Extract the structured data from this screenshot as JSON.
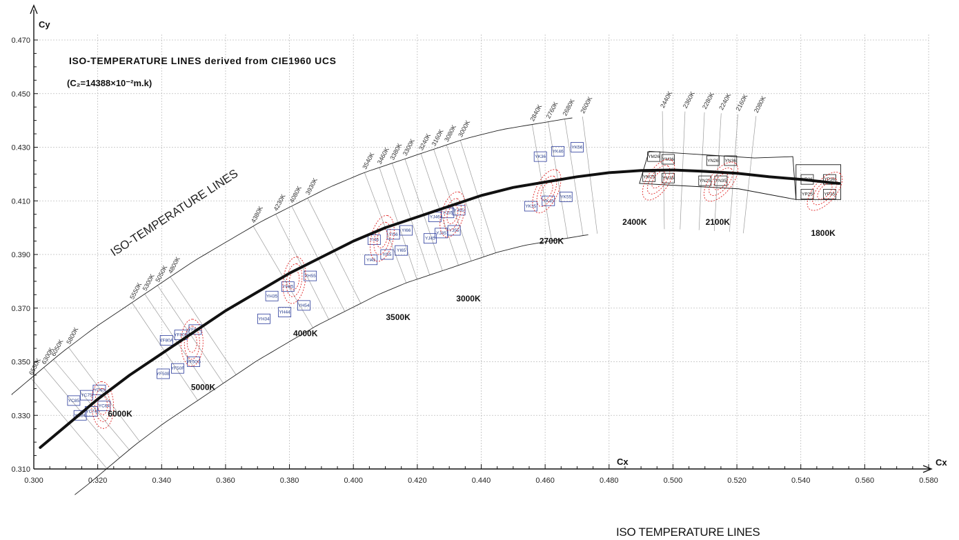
{
  "chart_data": {
    "type": "line",
    "title": "ISO-TEMPERATURE LINES derived  from CIE1960 UCS",
    "subtitle": "(C₂=14388×10⁻²m.k)",
    "diagonal_label": "ISO-TEMPERATURE LINES",
    "xlabel": "Cx",
    "xlabel_inner": "Cx",
    "ylabel": "Cy",
    "xlim": [
      0.3,
      0.58
    ],
    "ylim": [
      0.31,
      0.47
    ],
    "x_ticks": [
      "0.300",
      "0.320",
      "0.340",
      "0.360",
      "0.380",
      "0.400",
      "0.420",
      "0.440",
      "0.460",
      "0.480",
      "0.500",
      "0.520",
      "0.540",
      "0.560",
      "0.580"
    ],
    "y_ticks": [
      "0.310",
      "0.330",
      "0.350",
      "0.370",
      "0.390",
      "0.410",
      "0.430",
      "0.450",
      "0.470"
    ],
    "grid": true,
    "planckian_locus": {
      "x": [
        0.302,
        0.31,
        0.32,
        0.33,
        0.34,
        0.35,
        0.36,
        0.37,
        0.38,
        0.39,
        0.4,
        0.41,
        0.42,
        0.43,
        0.44,
        0.45,
        0.46,
        0.47,
        0.48,
        0.49,
        0.5,
        0.51,
        0.52,
        0.53,
        0.54,
        0.552
      ],
      "y": [
        0.318,
        0.326,
        0.336,
        0.345,
        0.353,
        0.361,
        0.369,
        0.376,
        0.383,
        0.389,
        0.395,
        0.4,
        0.404,
        0.408,
        0.412,
        0.415,
        0.417,
        0.419,
        0.4205,
        0.4213,
        0.4215,
        0.421,
        0.4203,
        0.419,
        0.418,
        0.4165
      ]
    },
    "cct_labels": [
      {
        "text": "6000K",
        "x": 0.327,
        "y": 0.3295
      },
      {
        "text": "5000K",
        "x": 0.353,
        "y": 0.3395
      },
      {
        "text": "4000K",
        "x": 0.385,
        "y": 0.3595
      },
      {
        "text": "3500K",
        "x": 0.414,
        "y": 0.3655
      },
      {
        "text": "3000K",
        "x": 0.436,
        "y": 0.3725
      },
      {
        "text": "2700K",
        "x": 0.462,
        "y": 0.394
      },
      {
        "text": "2400K",
        "x": 0.488,
        "y": 0.401
      },
      {
        "text": "2100K",
        "x": 0.514,
        "y": 0.401
      },
      {
        "text": "1800K",
        "x": 0.547,
        "y": 0.397
      }
    ],
    "iso_lines": [
      {
        "label": "6550K",
        "x": 0.311
      },
      {
        "label": "6300K",
        "x": 0.315
      },
      {
        "label": "6050K",
        "x": 0.318
      },
      {
        "label": "5800K",
        "x": 0.322
      },
      {
        "label": "5550K",
        "x": 0.341
      },
      {
        "label": "5300K",
        "x": 0.345
      },
      {
        "label": "5050K",
        "x": 0.349
      },
      {
        "label": "4800K",
        "x": 0.353
      },
      {
        "label": "4380K",
        "x": 0.378
      },
      {
        "label": "4230K",
        "x": 0.384
      },
      {
        "label": "4080K",
        "x": 0.389
      },
      {
        "label": "3930K",
        "x": 0.394
      },
      {
        "label": "3540K",
        "x": 0.41
      },
      {
        "label": "3460K",
        "x": 0.414
      },
      {
        "label": "3380K",
        "x": 0.418
      },
      {
        "label": "3300K",
        "x": 0.422
      },
      {
        "label": "3240K",
        "x": 0.427
      },
      {
        "label": "3160K",
        "x": 0.431
      },
      {
        "label": "3080K",
        "x": 0.435
      },
      {
        "label": "3000K",
        "x": 0.439
      },
      {
        "label": "2840K",
        "x": 0.459
      },
      {
        "label": "2760K",
        "x": 0.464
      },
      {
        "label": "2680K",
        "x": 0.469
      },
      {
        "label": "2600K",
        "x": 0.474
      },
      {
        "label": "2440K",
        "x": 0.497
      },
      {
        "label": "2360K",
        "x": 0.503
      },
      {
        "label": "2280K",
        "x": 0.509
      },
      {
        "label": "2240K",
        "x": 0.514
      },
      {
        "label": "2160K",
        "x": 0.519
      },
      {
        "label": "2080K",
        "x": 0.524
      }
    ],
    "bins": [
      {
        "label": "YC85",
        "x": 0.3125,
        "y": 0.3355
      },
      {
        "label": "YC75",
        "x": 0.3165,
        "y": 0.3375
      },
      {
        "label": "YC65",
        "x": 0.3205,
        "y": 0.3395
      },
      {
        "label": "YC84",
        "x": 0.3145,
        "y": 0.33
      },
      {
        "label": "YC74",
        "x": 0.318,
        "y": 0.3315
      },
      {
        "label": "YC64",
        "x": 0.322,
        "y": 0.3335
      },
      {
        "label": "YF80A",
        "x": 0.3415,
        "y": 0.358
      },
      {
        "label": "YF80B",
        "x": 0.346,
        "y": 0.36
      },
      {
        "label": "YF80C",
        "x": 0.3505,
        "y": 0.362
      },
      {
        "label": "YF50E",
        "x": 0.3405,
        "y": 0.3455
      },
      {
        "label": "YF50F",
        "x": 0.345,
        "y": 0.3475
      },
      {
        "label": "YF50G",
        "x": 0.35,
        "y": 0.35
      },
      {
        "label": "YH35",
        "x": 0.3745,
        "y": 0.3745
      },
      {
        "label": "YH45",
        "x": 0.3795,
        "y": 0.378
      },
      {
        "label": "YH55",
        "x": 0.3865,
        "y": 0.382
      },
      {
        "label": "YH34",
        "x": 0.372,
        "y": 0.366
      },
      {
        "label": "YH44",
        "x": 0.3785,
        "y": 0.3685
      },
      {
        "label": "YH54",
        "x": 0.3845,
        "y": 0.371
      },
      {
        "label": "YI46",
        "x": 0.4065,
        "y": 0.3955
      },
      {
        "label": "YI56",
        "x": 0.4125,
        "y": 0.3975
      },
      {
        "label": "YI66",
        "x": 0.4165,
        "y": 0.399
      },
      {
        "label": "YI45",
        "x": 0.4055,
        "y": 0.388
      },
      {
        "label": "YI55",
        "x": 0.4105,
        "y": 0.39
      },
      {
        "label": "YI65",
        "x": 0.415,
        "y": 0.3915
      },
      {
        "label": "YJ46",
        "x": 0.4255,
        "y": 0.404
      },
      {
        "label": "YJ55",
        "x": 0.4295,
        "y": 0.4055
      },
      {
        "label": "YJ65",
        "x": 0.433,
        "y": 0.4065
      },
      {
        "label": "YJ45",
        "x": 0.424,
        "y": 0.396
      },
      {
        "label": "YJ35",
        "x": 0.4275,
        "y": 0.398
      },
      {
        "label": "YJ55",
        "x": 0.4315,
        "y": 0.399
      },
      {
        "label": "YK36",
        "x": 0.4585,
        "y": 0.4265
      },
      {
        "label": "YK46",
        "x": 0.464,
        "y": 0.4285
      },
      {
        "label": "YK56",
        "x": 0.47,
        "y": 0.43
      },
      {
        "label": "YK35",
        "x": 0.4555,
        "y": 0.408
      },
      {
        "label": "YK45",
        "x": 0.461,
        "y": 0.41
      },
      {
        "label": "YK55",
        "x": 0.4665,
        "y": 0.4115
      },
      {
        "label": "YM26",
        "x": 0.494,
        "y": 0.4265
      },
      {
        "label": "YM36",
        "x": 0.4985,
        "y": 0.4255
      },
      {
        "label": "YM25",
        "x": 0.4925,
        "y": 0.419
      },
      {
        "label": "YM35",
        "x": 0.4985,
        "y": 0.4185
      },
      {
        "label": "YN26",
        "x": 0.5125,
        "y": 0.425
      },
      {
        "label": "YN36",
        "x": 0.518,
        "y": 0.425
      },
      {
        "label": "YN25",
        "x": 0.51,
        "y": 0.4175
      },
      {
        "label": "YN35",
        "x": 0.515,
        "y": 0.4175
      },
      {
        "label": "YP26",
        "x": 0.542,
        "y": 0.418
      },
      {
        "label": "YP36",
        "x": 0.549,
        "y": 0.418
      },
      {
        "label": "YP25",
        "x": 0.542,
        "y": 0.4125
      },
      {
        "label": "YP35",
        "x": 0.549,
        "y": 0.4125
      }
    ]
  },
  "footer_caption": "ISO TEMPERATURE LINES",
  "colors": {
    "locus": "#111111",
    "grid": "#bdbdbd",
    "bins": "#27389a",
    "ellipses": "#e02020",
    "iso": "#222222"
  }
}
